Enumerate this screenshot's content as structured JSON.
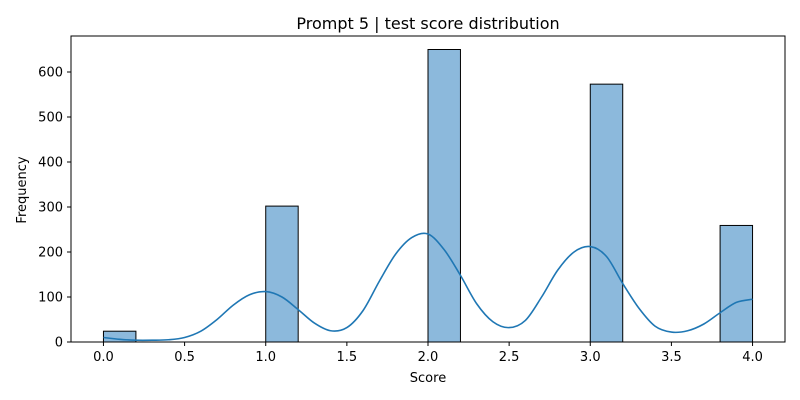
{
  "chart_data": {
    "type": "bar",
    "title": "Prompt 5 | test score distribution",
    "xlabel": "Score",
    "ylabel": "Frequency",
    "xlim": [
      -0.2,
      4.2
    ],
    "ylim": [
      0,
      680
    ],
    "xticks": [
      0.0,
      0.5,
      1.0,
      1.5,
      2.0,
      2.5,
      3.0,
      3.5,
      4.0
    ],
    "xtick_labels": [
      "0.0",
      "0.5",
      "1.0",
      "1.5",
      "2.0",
      "2.5",
      "3.0",
      "3.5",
      "4.0"
    ],
    "yticks": [
      0,
      100,
      200,
      300,
      400,
      500,
      600
    ],
    "ytick_labels": [
      "0",
      "100",
      "200",
      "300",
      "400",
      "500",
      "600"
    ],
    "bins": [
      {
        "start": 0.0,
        "end": 0.2,
        "count": 24
      },
      {
        "start": 1.0,
        "end": 1.2,
        "count": 302
      },
      {
        "start": 2.0,
        "end": 2.2,
        "count": 650
      },
      {
        "start": 3.0,
        "end": 3.2,
        "count": 573
      },
      {
        "start": 3.8,
        "end": 4.0,
        "count": 259
      }
    ],
    "kde": {
      "name": "density",
      "x": [
        0.0,
        0.1,
        0.2,
        0.3,
        0.4,
        0.5,
        0.6,
        0.7,
        0.8,
        0.9,
        1.0,
        1.1,
        1.2,
        1.3,
        1.4,
        1.5,
        1.6,
        1.7,
        1.8,
        1.9,
        2.0,
        2.1,
        2.2,
        2.3,
        2.4,
        2.5,
        2.6,
        2.7,
        2.8,
        2.9,
        3.0,
        3.1,
        3.2,
        3.3,
        3.4,
        3.5,
        3.6,
        3.7,
        3.8,
        3.9,
        4.0
      ],
      "y": [
        10,
        6,
        4,
        4,
        5,
        10,
        24,
        50,
        82,
        105,
        112,
        100,
        72,
        42,
        25,
        32,
        70,
        135,
        195,
        232,
        240,
        205,
        148,
        85,
        45,
        32,
        48,
        100,
        160,
        200,
        212,
        190,
        130,
        75,
        35,
        22,
        25,
        40,
        65,
        88,
        95
      ]
    },
    "colors": {
      "bar_fill": "#8cb9dc",
      "bar_edge": "#000000",
      "kde_line": "#1f77b4"
    },
    "grid": false,
    "legend": "none"
  }
}
